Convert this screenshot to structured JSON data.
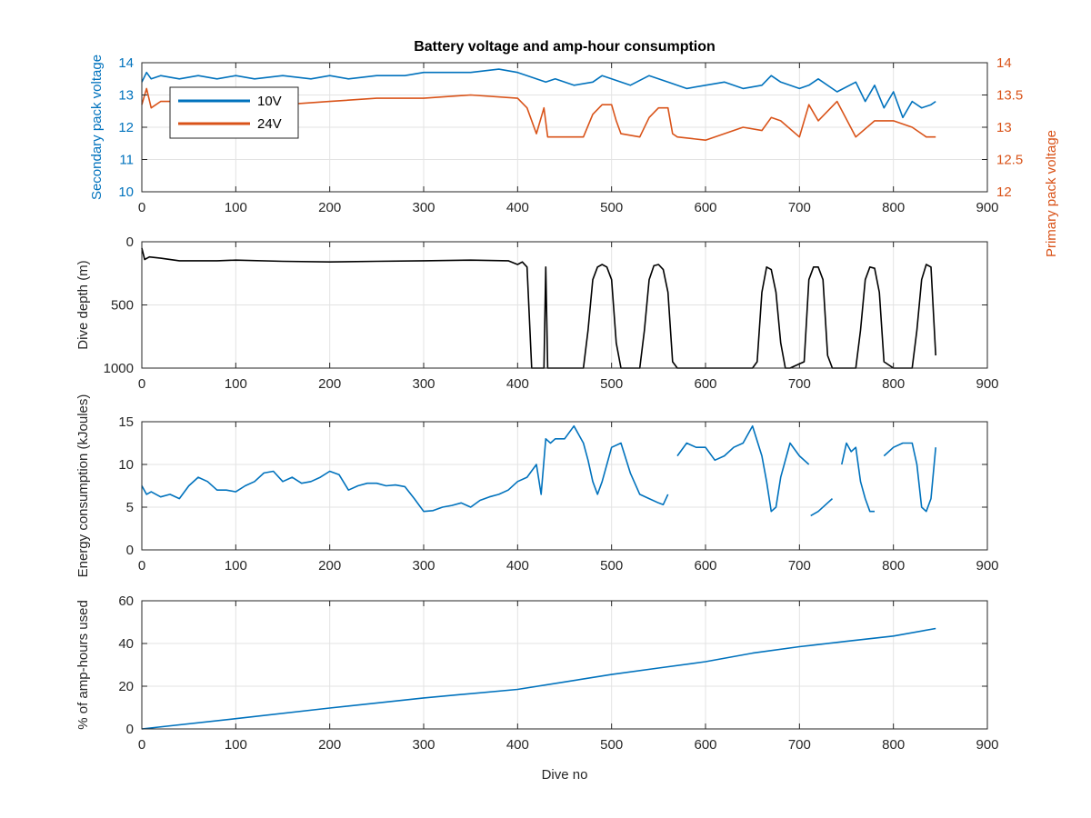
{
  "figure": {
    "title": "Battery voltage and amp-hour consumption",
    "xlabel": "Dive no"
  },
  "colors": {
    "blue": "#0072BD",
    "orange": "#D95319",
    "black": "#000000",
    "grid": "#e3e3e3",
    "axis": "#262626"
  },
  "chart_data": [
    {
      "type": "line",
      "id": "voltage",
      "title": "Battery voltage and amp-hour consumption",
      "xlabel": "",
      "ylabel": "Secondary pack voltage",
      "ylabel_right": "Primary pack voltage",
      "xlim": [
        0,
        900
      ],
      "ylim": [
        10,
        14
      ],
      "ylim_right": [
        12,
        14
      ],
      "xticks": [
        0,
        100,
        200,
        300,
        400,
        500,
        600,
        700,
        800,
        900
      ],
      "yticks": [
        10,
        11,
        12,
        13,
        14
      ],
      "yticks_right": [
        12,
        12.5,
        13,
        13.5,
        14
      ],
      "grid": true,
      "legend": {
        "placement": "top-left",
        "entries": [
          "10V",
          "24V"
        ]
      },
      "series": [
        {
          "name": "10V",
          "axis": "left",
          "x": [
            0,
            5,
            10,
            20,
            40,
            60,
            80,
            100,
            120,
            150,
            180,
            200,
            220,
            250,
            280,
            300,
            320,
            350,
            380,
            400,
            410,
            420,
            430,
            440,
            460,
            480,
            490,
            500,
            520,
            540,
            560,
            580,
            600,
            620,
            640,
            660,
            670,
            680,
            700,
            710,
            720,
            740,
            760,
            770,
            780,
            790,
            800,
            810,
            820,
            830,
            840,
            845
          ],
          "y": [
            13.4,
            13.7,
            13.5,
            13.6,
            13.5,
            13.6,
            13.5,
            13.6,
            13.5,
            13.6,
            13.5,
            13.6,
            13.5,
            13.6,
            13.6,
            13.7,
            13.7,
            13.7,
            13.8,
            13.7,
            13.6,
            13.5,
            13.4,
            13.5,
            13.3,
            13.4,
            13.6,
            13.5,
            13.3,
            13.6,
            13.4,
            13.2,
            13.3,
            13.4,
            13.2,
            13.3,
            13.6,
            13.4,
            13.2,
            13.3,
            13.5,
            13.1,
            13.4,
            12.8,
            13.3,
            12.6,
            13.1,
            12.3,
            12.8,
            12.6,
            12.7,
            12.8
          ]
        },
        {
          "name": "24V",
          "axis": "right",
          "x": [
            0,
            5,
            10,
            20,
            50,
            100,
            150,
            200,
            250,
            300,
            350,
            400,
            410,
            420,
            428,
            432,
            440,
            470,
            480,
            490,
            500,
            505,
            510,
            530,
            540,
            550,
            560,
            565,
            570,
            600,
            620,
            640,
            660,
            670,
            680,
            700,
            710,
            720,
            740,
            760,
            780,
            800,
            820,
            835,
            845
          ],
          "y": [
            13.35,
            13.6,
            13.3,
            13.4,
            13.4,
            13.45,
            13.35,
            13.4,
            13.45,
            13.45,
            13.5,
            13.45,
            13.3,
            12.9,
            13.3,
            12.85,
            12.85,
            12.85,
            13.2,
            13.35,
            13.35,
            13.1,
            12.9,
            12.85,
            13.15,
            13.3,
            13.3,
            12.9,
            12.85,
            12.8,
            12.9,
            13.0,
            12.95,
            13.15,
            13.1,
            12.85,
            13.35,
            13.1,
            13.4,
            12.85,
            13.1,
            13.1,
            13.0,
            12.85,
            12.85
          ]
        }
      ]
    },
    {
      "type": "line",
      "id": "depth",
      "title": "",
      "xlabel": "",
      "ylabel": "Dive depth (m)",
      "xlim": [
        0,
        900
      ],
      "ylim": [
        0,
        1000
      ],
      "y_reversed": true,
      "xticks": [
        0,
        100,
        200,
        300,
        400,
        500,
        600,
        700,
        800,
        900
      ],
      "yticks": [
        0,
        500,
        1000
      ],
      "grid": true,
      "series": [
        {
          "axis": "left",
          "x": [
            0,
            3,
            8,
            20,
            40,
            60,
            80,
            100,
            150,
            200,
            250,
            300,
            350,
            390,
            400,
            405,
            410,
            415,
            428,
            430,
            432,
            434,
            440,
            470,
            475,
            480,
            485,
            490,
            495,
            500,
            505,
            510,
            530,
            535,
            540,
            545,
            550,
            555,
            560,
            565,
            570,
            620,
            650,
            655,
            660,
            665,
            670,
            675,
            680,
            685,
            690,
            705,
            710,
            715,
            720,
            725,
            730,
            735,
            740,
            760,
            765,
            770,
            775,
            780,
            785,
            790,
            800,
            820,
            825,
            830,
            835,
            840,
            845
          ],
          "y": [
            50,
            140,
            120,
            130,
            150,
            150,
            150,
            145,
            155,
            160,
            155,
            150,
            145,
            150,
            180,
            160,
            200,
            1000,
            1000,
            200,
            1000,
            1000,
            1000,
            1000,
            700,
            300,
            200,
            180,
            200,
            300,
            800,
            1000,
            1000,
            700,
            300,
            190,
            180,
            220,
            400,
            950,
            1000,
            1000,
            1000,
            950,
            400,
            200,
            220,
            400,
            800,
            1000,
            1000,
            950,
            300,
            200,
            200,
            300,
            900,
            1000,
            1000,
            1000,
            700,
            300,
            200,
            210,
            400,
            950,
            1000,
            1000,
            700,
            300,
            180,
            200,
            900
          ]
        }
      ]
    },
    {
      "type": "line",
      "id": "energy",
      "title": "",
      "xlabel": "",
      "ylabel": "Energy consumption (kJoules)",
      "xlim": [
        0,
        900
      ],
      "ylim": [
        0,
        15
      ],
      "xticks": [
        0,
        100,
        200,
        300,
        400,
        500,
        600,
        700,
        800,
        900
      ],
      "yticks": [
        0,
        5,
        10,
        15
      ],
      "grid": true,
      "series": [
        {
          "axis": "left",
          "x": [
            0,
            5,
            10,
            20,
            30,
            40,
            50,
            60,
            70,
            80,
            90,
            100,
            110,
            120,
            130,
            140,
            150,
            160,
            170,
            180,
            190,
            200,
            210,
            220,
            230,
            240,
            250,
            260,
            270,
            280,
            290,
            300,
            310,
            320,
            330,
            340,
            350,
            360,
            370,
            380,
            390,
            400,
            410,
            420,
            425,
            430,
            435,
            440,
            450,
            460,
            470,
            475,
            480,
            485,
            490,
            500,
            510,
            520,
            530,
            540,
            550,
            555,
            560,
            null,
            570,
            580,
            590,
            600,
            610,
            620,
            630,
            640,
            650,
            660,
            665,
            670,
            675,
            680,
            690,
            700,
            710,
            null,
            712,
            720,
            730,
            735,
            null,
            745,
            750,
            755,
            760,
            765,
            770,
            775,
            780,
            null,
            790,
            800,
            810,
            820,
            825,
            830,
            835,
            840,
            845
          ],
          "y": [
            7.5,
            6.5,
            6.8,
            6.2,
            6.5,
            6.0,
            7.5,
            8.5,
            8.0,
            7.0,
            7.0,
            6.8,
            7.5,
            8.0,
            9.0,
            9.2,
            8.0,
            8.5,
            7.8,
            8.0,
            8.5,
            9.2,
            8.8,
            7.0,
            7.5,
            7.8,
            7.8,
            7.5,
            7.6,
            7.4,
            6.0,
            4.5,
            4.6,
            5.0,
            5.2,
            5.5,
            5.0,
            5.8,
            6.2,
            6.5,
            7.0,
            8.0,
            8.5,
            10.0,
            6.5,
            13.0,
            12.5,
            13.0,
            13.0,
            14.5,
            12.5,
            10.5,
            8.0,
            6.5,
            8.0,
            12.0,
            12.5,
            9.0,
            6.5,
            6.0,
            5.5,
            5.3,
            6.5,
            null,
            11.0,
            12.5,
            12.0,
            12.0,
            10.5,
            11.0,
            12.0,
            12.5,
            14.5,
            11.0,
            8.0,
            4.5,
            5.0,
            8.5,
            12.5,
            11.0,
            10.0,
            null,
            4.0,
            4.5,
            5.5,
            6.0,
            null,
            10.0,
            12.5,
            11.5,
            12.0,
            8.0,
            6.0,
            4.5,
            4.5,
            null,
            11.0,
            12.0,
            12.5,
            12.5,
            10.0,
            5.0,
            4.5,
            6.0,
            12.0
          ]
        }
      ]
    },
    {
      "type": "line",
      "id": "amphours",
      "title": "",
      "xlabel": "Dive no",
      "ylabel": "% of amp-hours used",
      "xlim": [
        0,
        900
      ],
      "ylim": [
        0,
        60
      ],
      "xticks": [
        0,
        100,
        200,
        300,
        400,
        500,
        600,
        700,
        800,
        900
      ],
      "yticks": [
        0,
        20,
        40,
        60
      ],
      "grid": true,
      "series": [
        {
          "axis": "left",
          "x": [
            0,
            100,
            200,
            300,
            400,
            450,
            500,
            550,
            600,
            650,
            700,
            750,
            800,
            845
          ],
          "y": [
            0,
            4.8,
            9.8,
            14.5,
            18.5,
            22.0,
            25.5,
            28.5,
            31.5,
            35.5,
            38.5,
            41.0,
            43.5,
            47.0
          ]
        }
      ]
    }
  ]
}
